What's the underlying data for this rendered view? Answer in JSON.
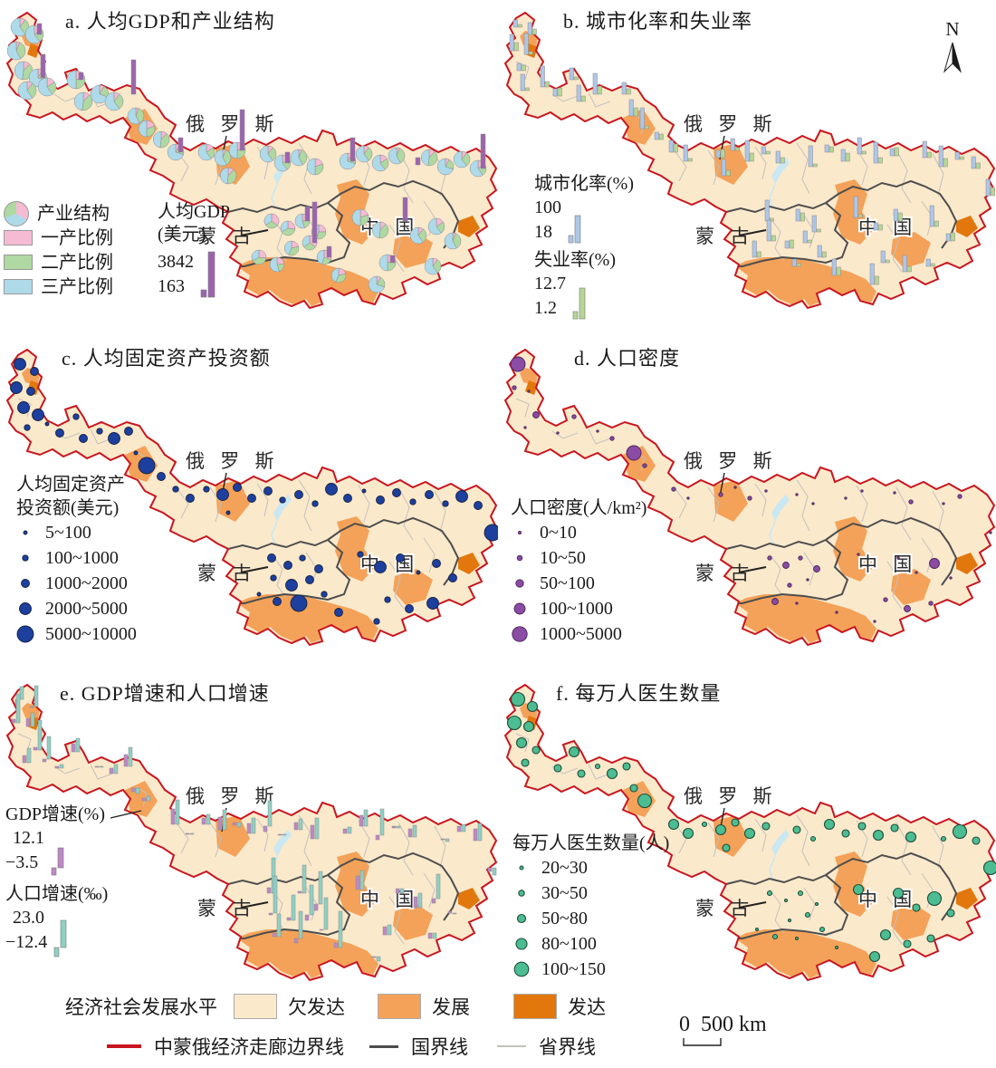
{
  "colors": {
    "corridor_border": "#c9151e",
    "underdeveloped": "#fbe9cc",
    "developing": "#f4a259",
    "developed": "#e2770d",
    "national_border": "#4d4d4d",
    "province_border": "#c2c0bc",
    "water": "#c9e8f2",
    "pie_primary": "#f5bbd3",
    "pie_secondary": "#afd8a2",
    "pie_tertiary": "#aedaea",
    "gdp_bar": "#9c64ae",
    "urban_bar": "#aec6e8",
    "unemployment_bar": "#b6d795",
    "gdp_growth_bar": "#be88c6",
    "pop_growth_bar": "#8fd0c4",
    "investment_circle": "#1d3f9e",
    "density_circle": "#8a4ca4",
    "doctors_circle": "#4cbd92"
  },
  "map_labels": {
    "russia": "俄 罗 斯",
    "mongolia": "蒙 古",
    "china": "中 国"
  },
  "north_arrow_label": "N",
  "scale_bar": {
    "zero": "0",
    "distance": "500 km"
  },
  "panels": {
    "a": {
      "title": "a. 人均GDP和产业结构",
      "legend": {
        "pie_label": "产业结构",
        "primary_label": "一产比例",
        "secondary_label": "二产比例",
        "tertiary_label": "三产比例",
        "gdp_title": "人均GDP",
        "gdp_unit": "(美元)",
        "gdp_max": "3842",
        "gdp_min": "163"
      }
    },
    "b": {
      "title": "b. 城市化率和失业率",
      "legend": {
        "urban_title": "城市化率(%)",
        "urban_max": "100",
        "urban_min": "18",
        "unemp_title": "失业率(%)",
        "unemp_max": "12.7",
        "unemp_min": "1.2"
      }
    },
    "c": {
      "title": "c. 人均固定资产投资额",
      "legend": {
        "title_line1": "人均固定资产",
        "title_line2": "投资额(美元)",
        "classes": [
          "5~100",
          "100~1000",
          "1000~2000",
          "2000~5000",
          "5000~10000"
        ]
      }
    },
    "d": {
      "title": "d. 人口密度",
      "legend": {
        "title": "人口密度(人/km²)",
        "classes": [
          "0~10",
          "10~50",
          "50~100",
          "100~1000",
          "1000~5000"
        ]
      }
    },
    "e": {
      "title": "e. GDP增速和人口增速",
      "legend": {
        "gdp_title": "GDP增速(%)",
        "gdp_max": "12.1",
        "gdp_min": "−3.5",
        "pop_title": "人口增速(‰)",
        "pop_max": "23.0",
        "pop_min": "−12.4"
      }
    },
    "f": {
      "title": "f. 每万人医生数量",
      "legend": {
        "title": "每万人医生数量(人)",
        "classes": [
          "20~30",
          "30~50",
          "50~80",
          "80~100",
          "100~150"
        ]
      }
    }
  },
  "bottom_legend": {
    "development_title": "经济社会发展水平",
    "development_classes": [
      {
        "label": "欠发达"
      },
      {
        "label": "发展"
      },
      {
        "label": "发达"
      }
    ],
    "line_items": [
      {
        "label": "中蒙俄经济走廊边界线"
      },
      {
        "label": "国界线"
      },
      {
        "label": "省界线"
      }
    ]
  }
}
